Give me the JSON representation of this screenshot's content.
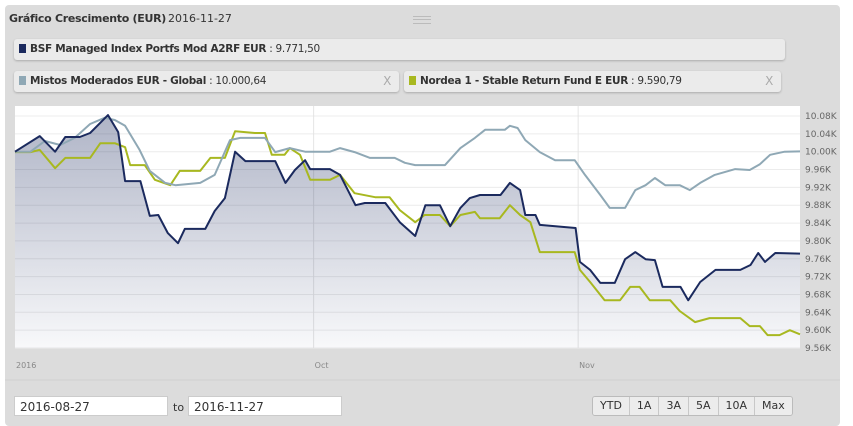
{
  "header": {
    "title": "Gráfico Crescimento (EUR)",
    "date": "2016-11-27"
  },
  "legend": [
    {
      "name": "BSF Managed Index Portfs Mod A2RF EUR",
      "value": ": 9.771,50",
      "color": "#1b2a5e",
      "removable": false
    },
    {
      "name": "Mistos Moderados EUR - Global",
      "value": ": 10.000,64",
      "color": "#8fa8b5",
      "removable": true,
      "close": "X"
    },
    {
      "name": "Nordea 1 - Stable Return Fund E EUR",
      "value": ": 9.590,79",
      "color": "#a8b820",
      "removable": true,
      "close": "X"
    }
  ],
  "range": {
    "from": "2016-08-27",
    "to_label": "to",
    "to": "2016-11-27"
  },
  "buttons": [
    "YTD",
    "1A",
    "3A",
    "5A",
    "10A",
    "Max"
  ],
  "chart_data": {
    "type": "line",
    "title": "Gráfico Crescimento (EUR)",
    "x_unit": "days since 2016-08-27",
    "xlim": [
      0,
      92
    ],
    "ylim": [
      9.56,
      10.1
    ],
    "yticks": [
      10.08,
      10.04,
      10.0,
      9.96,
      9.92,
      9.88,
      9.84,
      9.8,
      9.76,
      9.72,
      9.68,
      9.64,
      9.6,
      9.56
    ],
    "ytick_labels": [
      "10.08K",
      "10.04K",
      "10.00K",
      "9.96K",
      "9.92K",
      "9.88K",
      "9.84K",
      "9.80K",
      "9.76K",
      "9.72K",
      "9.68K",
      "9.64K",
      "9.60K",
      "9.56K"
    ],
    "xticks": [
      {
        "day": 0,
        "label": "2016"
      },
      {
        "day": 35,
        "label": "Oct"
      },
      {
        "day": 66,
        "label": "Nov"
      }
    ],
    "series": [
      {
        "name": "BSF Managed Index Portfs Mod A2RF EUR",
        "color": "#1b2a5e",
        "area": true,
        "points": [
          [
            0,
            10.0
          ],
          [
            2.9,
            10.035
          ],
          [
            4.7,
            10.0
          ],
          [
            5.9,
            10.033
          ],
          [
            7.6,
            10.033
          ],
          [
            8.8,
            10.042
          ],
          [
            10.9,
            10.082
          ],
          [
            12.1,
            10.044
          ],
          [
            12.9,
            9.934
          ],
          [
            14.7,
            9.934
          ],
          [
            15.8,
            9.856
          ],
          [
            16.8,
            9.858
          ],
          [
            17.9,
            9.818
          ],
          [
            19.1,
            9.795
          ],
          [
            19.9,
            9.827
          ],
          [
            22.3,
            9.827
          ],
          [
            23.4,
            9.867
          ],
          [
            24.6,
            9.896
          ],
          [
            25.8,
            10.0
          ],
          [
            27,
            9.979
          ],
          [
            30.5,
            9.979
          ],
          [
            31.7,
            9.93
          ],
          [
            32.8,
            9.959
          ],
          [
            34,
            9.981
          ],
          [
            34.6,
            9.961
          ],
          [
            36.9,
            9.961
          ],
          [
            38.1,
            9.948
          ],
          [
            39.9,
            9.88
          ],
          [
            41,
            9.885
          ],
          [
            43.4,
            9.885
          ],
          [
            45.1,
            9.842
          ],
          [
            46.9,
            9.811
          ],
          [
            48.1,
            9.88
          ],
          [
            49.8,
            9.88
          ],
          [
            51,
            9.833
          ],
          [
            52.2,
            9.874
          ],
          [
            53.3,
            9.896
          ],
          [
            54.5,
            9.903
          ],
          [
            56.9,
            9.903
          ],
          [
            58,
            9.93
          ],
          [
            59.2,
            9.914
          ],
          [
            59.8,
            9.858
          ],
          [
            61,
            9.858
          ],
          [
            61.5,
            9.836
          ],
          [
            64.5,
            9.831
          ],
          [
            65.7,
            9.829
          ],
          [
            66.2,
            9.753
          ],
          [
            67.4,
            9.735
          ],
          [
            68.6,
            9.706
          ],
          [
            70.3,
            9.706
          ],
          [
            71.5,
            9.759
          ],
          [
            72.7,
            9.775
          ],
          [
            73.9,
            9.759
          ],
          [
            75,
            9.757
          ],
          [
            75.9,
            9.697
          ],
          [
            78,
            9.697
          ],
          [
            78.9,
            9.667
          ],
          [
            80.3,
            9.708
          ],
          [
            82.1,
            9.735
          ],
          [
            85,
            9.735
          ],
          [
            86.2,
            9.746
          ],
          [
            87.1,
            9.773
          ],
          [
            87.9,
            9.753
          ],
          [
            89.1,
            9.773
          ],
          [
            92,
            9.7715
          ]
        ]
      },
      {
        "name": "Mistos Moderados EUR - Global",
        "color": "#8fa8b5",
        "area": false,
        "points": [
          [
            0,
            10.0
          ],
          [
            1.8,
            10.0
          ],
          [
            3.5,
            10.024
          ],
          [
            5.3,
            10.015
          ],
          [
            7,
            10.031
          ],
          [
            8.8,
            10.062
          ],
          [
            10.5,
            10.076
          ],
          [
            11.7,
            10.071
          ],
          [
            12.9,
            10.058
          ],
          [
            14.6,
            10.004
          ],
          [
            15.8,
            9.957
          ],
          [
            17.6,
            9.93
          ],
          [
            18.8,
            9.925
          ],
          [
            21.7,
            9.93
          ],
          [
            23.4,
            9.948
          ],
          [
            25.2,
            10.026
          ],
          [
            26.4,
            10.031
          ],
          [
            29.3,
            10.031
          ],
          [
            30.5,
            9.999
          ],
          [
            32.2,
            10.008
          ],
          [
            34,
            10.0
          ],
          [
            36.9,
            10.0
          ],
          [
            38.1,
            10.008
          ],
          [
            39.8,
            9.999
          ],
          [
            41.6,
            9.986
          ],
          [
            44.5,
            9.986
          ],
          [
            45.7,
            9.975
          ],
          [
            46.9,
            9.97
          ],
          [
            50.4,
            9.97
          ],
          [
            52.2,
            10.008
          ],
          [
            53.9,
            10.031
          ],
          [
            55.1,
            10.049
          ],
          [
            57.4,
            10.049
          ],
          [
            58,
            10.058
          ],
          [
            58.9,
            10.053
          ],
          [
            59.8,
            10.026
          ],
          [
            61.5,
            9.999
          ],
          [
            63.3,
            9.981
          ],
          [
            65.6,
            9.981
          ],
          [
            66.8,
            9.948
          ],
          [
            68.6,
            9.903
          ],
          [
            69.7,
            9.874
          ],
          [
            71.5,
            9.874
          ],
          [
            72.7,
            9.914
          ],
          [
            73.9,
            9.925
          ],
          [
            75,
            9.941
          ],
          [
            76.2,
            9.925
          ],
          [
            77.9,
            9.925
          ],
          [
            79.1,
            9.914
          ],
          [
            80.3,
            9.93
          ],
          [
            82,
            9.948
          ],
          [
            84.4,
            9.961
          ],
          [
            86.1,
            9.959
          ],
          [
            87.3,
            9.972
          ],
          [
            88.5,
            9.993
          ],
          [
            90.2,
            10.0
          ],
          [
            92,
            10.0006
          ]
        ]
      },
      {
        "name": "Nordea 1 - Stable Return Fund E EUR",
        "color": "#a8b820",
        "area": false,
        "points": [
          [
            0,
            9.999
          ],
          [
            1.8,
            9.999
          ],
          [
            2.9,
            10.004
          ],
          [
            4.7,
            9.963
          ],
          [
            5.9,
            9.986
          ],
          [
            8.8,
            9.986
          ],
          [
            10,
            10.019
          ],
          [
            11.7,
            10.019
          ],
          [
            12.9,
            10.01
          ],
          [
            13.5,
            9.97
          ],
          [
            15.2,
            9.97
          ],
          [
            16.4,
            9.937
          ],
          [
            18.2,
            9.925
          ],
          [
            19.3,
            9.957
          ],
          [
            21.7,
            9.957
          ],
          [
            22.9,
            9.986
          ],
          [
            24.6,
            9.986
          ],
          [
            25.8,
            10.046
          ],
          [
            28.1,
            10.042
          ],
          [
            29.3,
            10.042
          ],
          [
            30.1,
            9.993
          ],
          [
            31.6,
            9.993
          ],
          [
            32.2,
            10.008
          ],
          [
            33.4,
            9.993
          ],
          [
            34.6,
            9.937
          ],
          [
            36.9,
            9.937
          ],
          [
            38.1,
            9.948
          ],
          [
            39.8,
            9.907
          ],
          [
            42.2,
            9.898
          ],
          [
            43.9,
            9.898
          ],
          [
            45.1,
            9.869
          ],
          [
            46.9,
            9.842
          ],
          [
            48,
            9.858
          ],
          [
            49.8,
            9.858
          ],
          [
            51,
            9.833
          ],
          [
            52.2,
            9.858
          ],
          [
            53.9,
            9.865
          ],
          [
            54.5,
            9.851
          ],
          [
            56.8,
            9.851
          ],
          [
            58,
            9.88
          ],
          [
            59.2,
            9.858
          ],
          [
            60.4,
            9.842
          ],
          [
            61.5,
            9.775
          ],
          [
            65.6,
            9.775
          ],
          [
            66.2,
            9.735
          ],
          [
            67.4,
            9.708
          ],
          [
            69.1,
            9.667
          ],
          [
            70.9,
            9.667
          ],
          [
            72.1,
            9.697
          ],
          [
            73.2,
            9.697
          ],
          [
            74.4,
            9.667
          ],
          [
            76.8,
            9.667
          ],
          [
            77.9,
            9.643
          ],
          [
            79.7,
            9.618
          ],
          [
            81.4,
            9.627
          ],
          [
            85,
            9.627
          ],
          [
            86.1,
            9.609
          ],
          [
            87.3,
            9.609
          ],
          [
            88.2,
            9.589
          ],
          [
            89.6,
            9.589
          ],
          [
            90.8,
            9.6
          ],
          [
            92,
            9.5908
          ]
        ]
      }
    ]
  }
}
